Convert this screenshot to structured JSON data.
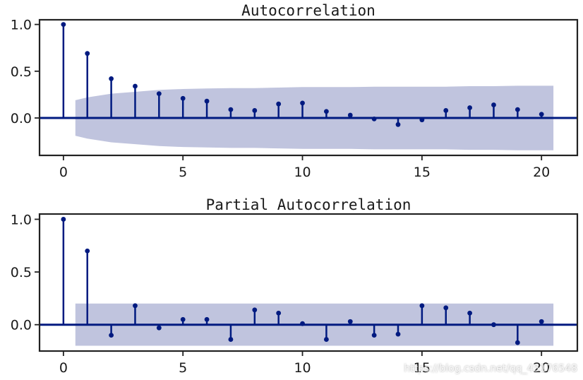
{
  "colors": {
    "stem": "#001a80",
    "confidence_band": "#c0c4de",
    "axes": "#222222"
  },
  "watermark": "https://blog.csdn.net/qq_45176548",
  "chart_data": [
    {
      "type": "stem",
      "title": "Autocorrelation",
      "xlabel": "",
      "ylabel": "",
      "xlim": [
        -1,
        21.5
      ],
      "ylim": [
        -0.4,
        1.05
      ],
      "xticks": [
        0,
        5,
        10,
        15,
        20
      ],
      "xtick_labels": [
        "0",
        "5",
        "10",
        "15",
        "20"
      ],
      "yticks": [
        0.0,
        0.5,
        1.0
      ],
      "ytick_labels": [
        "0.0",
        "0.5",
        "1.0"
      ],
      "x": [
        0,
        1,
        2,
        3,
        4,
        5,
        6,
        7,
        8,
        9,
        10,
        11,
        12,
        13,
        14,
        15,
        16,
        17,
        18,
        19,
        20
      ],
      "values": [
        1.0,
        0.69,
        0.42,
        0.34,
        0.26,
        0.21,
        0.18,
        0.09,
        0.08,
        0.15,
        0.16,
        0.07,
        0.03,
        -0.01,
        -0.07,
        -0.02,
        0.08,
        0.11,
        0.14,
        0.09,
        0.04
      ],
      "confidence_band": {
        "x": [
          0.5,
          1,
          2,
          3,
          4,
          5,
          6,
          7,
          8,
          9,
          10,
          11,
          12,
          13,
          14,
          15,
          16,
          17,
          18,
          19,
          20,
          20.5
        ],
        "upper": [
          0.19,
          0.22,
          0.26,
          0.28,
          0.3,
          0.31,
          0.315,
          0.32,
          0.32,
          0.325,
          0.33,
          0.33,
          0.33,
          0.335,
          0.335,
          0.335,
          0.335,
          0.34,
          0.34,
          0.345,
          0.345,
          0.345
        ],
        "lower": [
          -0.19,
          -0.22,
          -0.26,
          -0.28,
          -0.3,
          -0.31,
          -0.315,
          -0.32,
          -0.32,
          -0.325,
          -0.33,
          -0.33,
          -0.33,
          -0.335,
          -0.335,
          -0.335,
          -0.335,
          -0.34,
          -0.34,
          -0.345,
          -0.345,
          -0.345
        ]
      }
    },
    {
      "type": "stem",
      "title": "Partial Autocorrelation",
      "xlabel": "",
      "ylabel": "",
      "xlim": [
        -1,
        21.5
      ],
      "ylim": [
        -0.25,
        1.05
      ],
      "xticks": [
        0,
        5,
        10,
        15,
        20
      ],
      "xtick_labels": [
        "0",
        "5",
        "10",
        "15",
        "20"
      ],
      "yticks": [
        0.0,
        0.5,
        1.0
      ],
      "ytick_labels": [
        "0.0",
        "0.5",
        "1.0"
      ],
      "x": [
        0,
        1,
        2,
        3,
        4,
        5,
        6,
        7,
        8,
        9,
        10,
        11,
        12,
        13,
        14,
        15,
        16,
        17,
        18,
        19,
        20
      ],
      "values": [
        1.0,
        0.7,
        -0.1,
        0.18,
        -0.03,
        0.05,
        0.05,
        -0.14,
        0.14,
        0.11,
        0.01,
        -0.14,
        0.03,
        -0.1,
        -0.09,
        0.18,
        0.16,
        0.11,
        0.0,
        -0.17,
        0.03
      ],
      "confidence_band": {
        "x": [
          0.5,
          20.5
        ],
        "upper": [
          0.2,
          0.2
        ],
        "lower": [
          -0.2,
          -0.2
        ]
      }
    }
  ]
}
